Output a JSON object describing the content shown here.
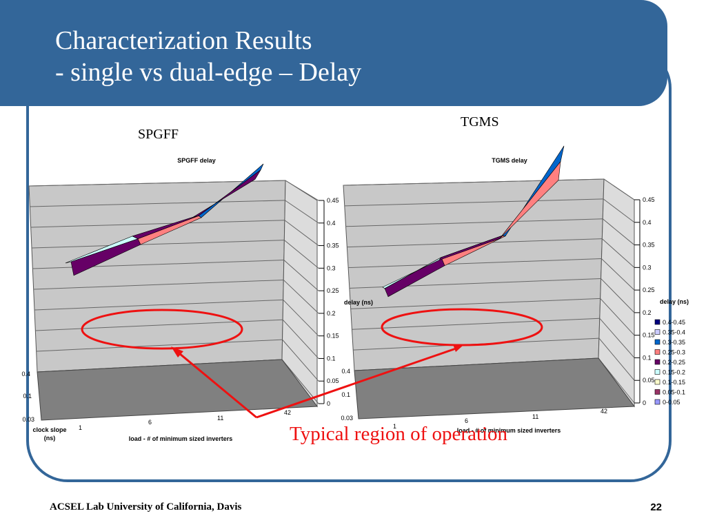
{
  "slide": {
    "title_line1": "Characterization Results",
    "title_line2": "-  single vs dual-edge – Delay",
    "footer": "ACSEL Lab University of California, Davis",
    "page_number": "22",
    "callout": "Typical region of operation",
    "colors": {
      "banner": "#336699",
      "frame_border": "#336699",
      "callout": "#ee1111"
    }
  },
  "chart_labels": {
    "left": "SPGFF",
    "right": "TGMS"
  },
  "chart_data": [
    {
      "type": "surface-3d",
      "title": "SPGFF delay",
      "zlabel": "delay (ns)",
      "xlabel": "load - # of minimum sized inverters",
      "ylabel": "clock slope (ns)",
      "x_categories": [
        "1",
        "6",
        "11",
        "42"
      ],
      "y_categories": [
        "0.03",
        "0.1",
        "0.4"
      ],
      "zlim": [
        0,
        0.45
      ],
      "z_ticks": [
        "0",
        "0.05",
        "0.1",
        "0.15",
        "0.2",
        "0.25",
        "0.3",
        "0.35",
        "0.4",
        "0.45"
      ],
      "values": [
        [
          0.13,
          0.17,
          0.19,
          0.24
        ],
        [
          0.18,
          0.21,
          0.24,
          0.31
        ],
        [
          0.22,
          0.27,
          0.31,
          0.4
        ]
      ]
    },
    {
      "type": "surface-3d",
      "title": "TGMS delay",
      "zlabel": "delay (ns)",
      "xlabel": "load - # of minimum sized inverters",
      "ylabel": "",
      "x_categories": [
        "1",
        "6",
        "11",
        "42"
      ],
      "y_categories": [
        "0.03",
        "0.1",
        "0.4"
      ],
      "zlim": [
        0,
        0.45
      ],
      "z_ticks": [
        "0",
        "0.05",
        "0.1",
        "0.15",
        "0.2",
        "0.25",
        "0.3",
        "0.35",
        "0.4",
        "0.45"
      ],
      "values": [
        [
          0.13,
          0.16,
          0.19,
          0.25
        ],
        [
          0.17,
          0.21,
          0.24,
          0.34
        ],
        [
          0.21,
          0.25,
          0.3,
          0.44
        ]
      ]
    }
  ],
  "legend": {
    "title": "delay (ns)",
    "items": [
      {
        "label": "0.4-0.45",
        "color": "#000080"
      },
      {
        "label": "0.35-0.4",
        "color": "#ccccff"
      },
      {
        "label": "0.3-0.35",
        "color": "#0066cc"
      },
      {
        "label": "0.25-0.3",
        "color": "#ff8080"
      },
      {
        "label": "0.2-0.25",
        "color": "#660066"
      },
      {
        "label": "0.15-0.2",
        "color": "#ccffff"
      },
      {
        "label": "0.1-0.15",
        "color": "#ffffcc"
      },
      {
        "label": "0.05-0.1",
        "color": "#993366"
      },
      {
        "label": "0-0.05",
        "color": "#9999ff"
      }
    ]
  }
}
